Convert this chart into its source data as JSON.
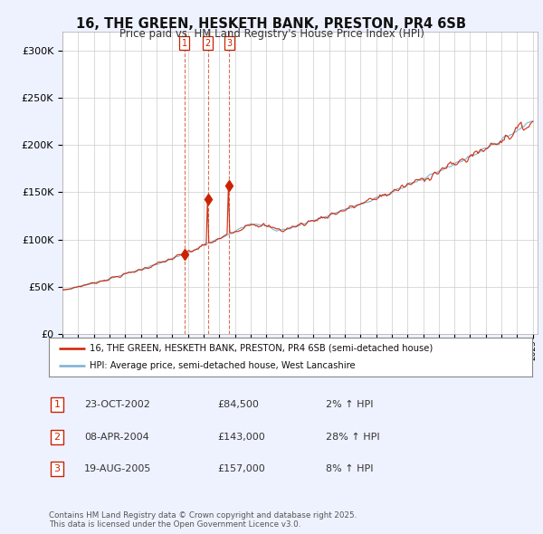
{
  "title": "16, THE GREEN, HESKETH BANK, PRESTON, PR4 6SB",
  "subtitle": "Price paid vs. HM Land Registry's House Price Index (HPI)",
  "ylim": [
    0,
    320000
  ],
  "yticks": [
    0,
    50000,
    100000,
    150000,
    200000,
    250000,
    300000
  ],
  "bg_color": "#eef2ff",
  "plot_bg": "#ffffff",
  "line_color_red": "#cc2200",
  "line_color_blue": "#7ab0d4",
  "transaction_years": [
    2002.79,
    2004.27,
    2005.63
  ],
  "transaction_prices": [
    84500,
    143000,
    157000
  ],
  "transaction_labels": [
    "1",
    "2",
    "3"
  ],
  "legend_line1": "16, THE GREEN, HESKETH BANK, PRESTON, PR4 6SB (semi-detached house)",
  "legend_line2": "HPI: Average price, semi-detached house, West Lancashire",
  "table_data": [
    [
      "1",
      "23-OCT-2002",
      "£84,500",
      "2% ↑ HPI"
    ],
    [
      "2",
      "08-APR-2004",
      "£143,000",
      "28% ↑ HPI"
    ],
    [
      "3",
      "19-AUG-2005",
      "£157,000",
      "8% ↑ HPI"
    ]
  ],
  "footnote": "Contains HM Land Registry data © Crown copyright and database right 2025.\nThis data is licensed under the Open Government Licence v3.0.",
  "start_year": 1995,
  "end_year": 2025
}
